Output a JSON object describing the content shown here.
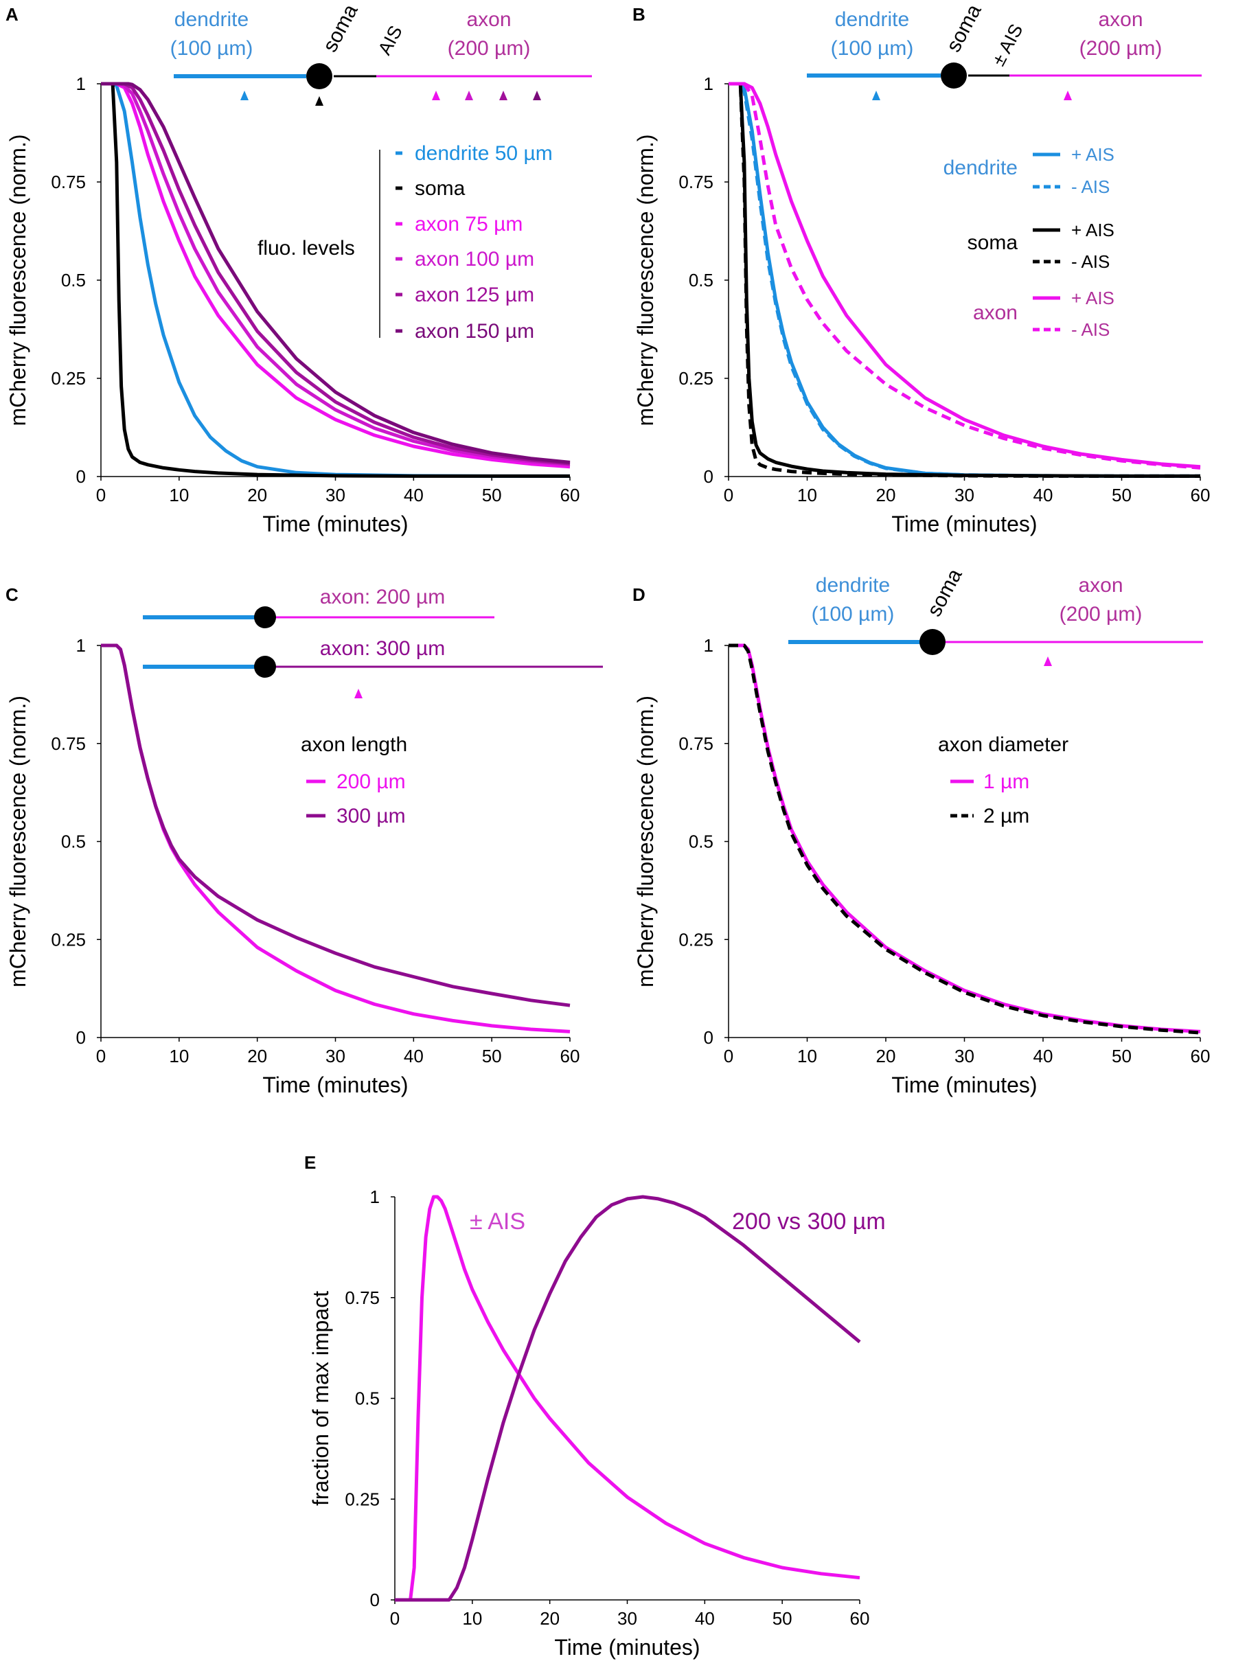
{
  "colors": {
    "dendrite": "#1b8fe0",
    "soma": "#000000",
    "axon_magenta": "#ee11ee",
    "axon_100": "#cc18cc",
    "axon_125": "#a0109a",
    "axon_150": "#7a0a7a",
    "axon_300": "#8e0b8e",
    "axon_label": "#b0309a",
    "dendrite_label": "#3d8fd8"
  },
  "chart_data": [
    {
      "panel": "A",
      "type": "line",
      "xlabel": "Time (minutes)",
      "ylabel": "mCherry fluorescence (norm.)",
      "xlim": [
        0,
        60
      ],
      "ylim": [
        0,
        1
      ],
      "xticks": [
        "0",
        "10",
        "20",
        "30",
        "40",
        "50",
        "60"
      ],
      "yticks": [
        "0",
        "0.25",
        "0.5",
        "0.75",
        "1"
      ],
      "schematic": {
        "dendrite_label": "dendrite",
        "dendrite_len": "(100 µm)",
        "soma_label": "soma",
        "ais_label": "AIS",
        "axon_label": "axon",
        "axon_len": "(200 µm)"
      },
      "legend_title": "fluo. levels",
      "series": [
        {
          "name": "dendrite 50 µm",
          "color": "#1b8fe0",
          "dash": false,
          "x": [
            0,
            1.5,
            2,
            3,
            4,
            5,
            6,
            7,
            8,
            10,
            12,
            14,
            16,
            18,
            20,
            25,
            30,
            40,
            50,
            60
          ],
          "y": [
            1,
            1,
            0.995,
            0.93,
            0.8,
            0.66,
            0.54,
            0.44,
            0.36,
            0.24,
            0.155,
            0.1,
            0.065,
            0.04,
            0.025,
            0.01,
            0.005,
            0.002,
            0.001,
            0.001
          ]
        },
        {
          "name": "soma",
          "color": "#000000",
          "dash": false,
          "x": [
            0,
            1.5,
            2,
            2.3,
            2.6,
            3,
            3.5,
            4,
            5,
            6,
            8,
            10,
            12,
            15,
            20,
            30,
            40,
            50,
            60
          ],
          "y": [
            1,
            1,
            0.8,
            0.45,
            0.23,
            0.12,
            0.07,
            0.05,
            0.036,
            0.03,
            0.022,
            0.017,
            0.013,
            0.009,
            0.005,
            0.002,
            0.001,
            0.001,
            0.001
          ]
        },
        {
          "name": "axon 75 µm",
          "color": "#ee11ee",
          "dash": false,
          "x": [
            0,
            2,
            3,
            4,
            5,
            6,
            8,
            10,
            12,
            15,
            20,
            25,
            30,
            35,
            40,
            45,
            50,
            55,
            60
          ],
          "y": [
            1,
            1,
            0.99,
            0.95,
            0.89,
            0.82,
            0.7,
            0.6,
            0.51,
            0.41,
            0.285,
            0.2,
            0.145,
            0.105,
            0.077,
            0.057,
            0.043,
            0.032,
            0.025
          ]
        },
        {
          "name": "axon 100 µm",
          "color": "#cc18cc",
          "dash": false,
          "x": [
            0,
            2.5,
            3,
            4,
            5,
            6,
            8,
            10,
            12,
            15,
            20,
            25,
            30,
            35,
            40,
            45,
            50,
            55,
            60
          ],
          "y": [
            1,
            1,
            0.995,
            0.975,
            0.93,
            0.88,
            0.77,
            0.67,
            0.58,
            0.47,
            0.33,
            0.235,
            0.17,
            0.123,
            0.09,
            0.066,
            0.05,
            0.038,
            0.03
          ]
        },
        {
          "name": "axon 125 µm",
          "color": "#a0109a",
          "dash": false,
          "x": [
            0,
            3,
            4,
            5,
            6,
            8,
            10,
            12,
            15,
            20,
            25,
            30,
            35,
            40,
            45,
            50,
            55,
            60
          ],
          "y": [
            1,
            1,
            0.99,
            0.96,
            0.92,
            0.83,
            0.73,
            0.64,
            0.52,
            0.37,
            0.265,
            0.19,
            0.138,
            0.1,
            0.073,
            0.055,
            0.042,
            0.033
          ]
        },
        {
          "name": "axon 150 µm",
          "color": "#7a0a7a",
          "dash": false,
          "x": [
            0,
            3.5,
            4,
            5,
            6,
            8,
            10,
            12,
            15,
            20,
            25,
            30,
            35,
            40,
            45,
            50,
            55,
            60
          ],
          "y": [
            1,
            1,
            0.998,
            0.985,
            0.96,
            0.89,
            0.8,
            0.71,
            0.58,
            0.42,
            0.3,
            0.215,
            0.155,
            0.112,
            0.082,
            0.06,
            0.046,
            0.036
          ]
        }
      ]
    },
    {
      "panel": "B",
      "type": "line",
      "xlabel": "Time (minutes)",
      "ylabel": "mCherry fluorescence (norm.)",
      "xlim": [
        0,
        60
      ],
      "ylim": [
        0,
        1
      ],
      "xticks": [
        "0",
        "10",
        "20",
        "30",
        "40",
        "50",
        "60"
      ],
      "yticks": [
        "0",
        "0.25",
        "0.5",
        "0.75",
        "1"
      ],
      "schematic": {
        "dendrite_label": "dendrite",
        "dendrite_len": "(100 µm)",
        "soma_label": "soma",
        "ais_label": "± AIS",
        "axon_label": "axon",
        "axon_len": "(200 µm)"
      },
      "legend": [
        {
          "group": "dendrite",
          "plus": "+ AIS",
          "minus": "- AIS",
          "color": "#1b8fe0"
        },
        {
          "group": "soma",
          "plus": "+ AIS",
          "minus": "- AIS",
          "color": "#000000"
        },
        {
          "group": "axon",
          "plus": "+ AIS",
          "minus": "- AIS",
          "color": "#ee11ee"
        }
      ],
      "series": [
        {
          "name": "dendrite + AIS",
          "color": "#1b8fe0",
          "dash": false,
          "x": [
            0,
            1.5,
            2,
            3,
            4,
            5,
            6,
            7,
            8,
            10,
            12,
            14,
            16,
            18,
            20,
            25,
            30,
            40,
            50,
            60
          ],
          "y": [
            1,
            1,
            0.99,
            0.88,
            0.72,
            0.57,
            0.45,
            0.36,
            0.29,
            0.19,
            0.125,
            0.082,
            0.054,
            0.035,
            0.022,
            0.008,
            0.004,
            0.002,
            0.001,
            0.001
          ]
        },
        {
          "name": "dendrite - AIS",
          "color": "#1b8fe0",
          "dash": true,
          "x": [
            0,
            1.5,
            2,
            3,
            4,
            5,
            6,
            7,
            8,
            10,
            12,
            14,
            16,
            18,
            20,
            25,
            30,
            40,
            50,
            60
          ],
          "y": [
            1,
            1,
            0.98,
            0.86,
            0.7,
            0.55,
            0.44,
            0.35,
            0.28,
            0.185,
            0.12,
            0.08,
            0.052,
            0.034,
            0.021,
            0.008,
            0.004,
            0.002,
            0.001,
            0.001
          ]
        },
        {
          "name": "soma + AIS",
          "color": "#000000",
          "dash": false,
          "x": [
            0,
            1.5,
            2,
            2.3,
            2.6,
            3,
            3.5,
            4,
            5,
            6,
            8,
            10,
            12,
            15,
            20,
            30,
            40,
            50,
            60
          ],
          "y": [
            1,
            1,
            0.8,
            0.45,
            0.25,
            0.14,
            0.08,
            0.06,
            0.045,
            0.036,
            0.026,
            0.019,
            0.014,
            0.01,
            0.006,
            0.003,
            0.002,
            0.001,
            0.001
          ]
        },
        {
          "name": "soma - AIS",
          "color": "#000000",
          "dash": true,
          "x": [
            0,
            1.5,
            2,
            2.3,
            2.6,
            3,
            3.5,
            4,
            5,
            6,
            8,
            10,
            12,
            15,
            20,
            30,
            40,
            50,
            60
          ],
          "y": [
            1,
            1,
            0.75,
            0.38,
            0.18,
            0.08,
            0.04,
            0.03,
            0.022,
            0.018,
            0.013,
            0.01,
            0.008,
            0.006,
            0.004,
            0.002,
            0.001,
            0.001,
            0.001
          ]
        },
        {
          "name": "axon + AIS",
          "color": "#ee11ee",
          "dash": false,
          "x": [
            0,
            2,
            3,
            4,
            5,
            6,
            8,
            10,
            12,
            15,
            20,
            25,
            30,
            35,
            40,
            45,
            50,
            55,
            60
          ],
          "y": [
            1,
            1,
            0.99,
            0.95,
            0.89,
            0.82,
            0.7,
            0.6,
            0.51,
            0.41,
            0.285,
            0.2,
            0.145,
            0.105,
            0.077,
            0.057,
            0.043,
            0.032,
            0.025
          ]
        },
        {
          "name": "axon - AIS",
          "color": "#ee11ee",
          "dash": true,
          "x": [
            0,
            2,
            3,
            4,
            5,
            6,
            8,
            10,
            12,
            15,
            20,
            25,
            30,
            35,
            40,
            45,
            50,
            55,
            60
          ],
          "y": [
            1,
            1,
            0.97,
            0.86,
            0.74,
            0.64,
            0.53,
            0.45,
            0.39,
            0.32,
            0.235,
            0.175,
            0.13,
            0.097,
            0.072,
            0.054,
            0.04,
            0.03,
            0.022
          ]
        }
      ]
    },
    {
      "panel": "C",
      "type": "line",
      "xlabel": "Time (minutes)",
      "ylabel": "mCherry fluorescence (norm.)",
      "xlim": [
        0,
        60
      ],
      "ylim": [
        0,
        1
      ],
      "xticks": [
        "0",
        "10",
        "20",
        "30",
        "40",
        "50",
        "60"
      ],
      "yticks": [
        "0",
        "0.25",
        "0.5",
        "0.75",
        "1"
      ],
      "schematic": {
        "axon_200_label": "axon: 200 µm",
        "axon_300_label": "axon: 300 µm"
      },
      "legend_title": "axon length",
      "series": [
        {
          "name": "200 µm",
          "color": "#ee11ee",
          "dash": false,
          "x": [
            0,
            2,
            2.5,
            3,
            4,
            5,
            6,
            7,
            8,
            9,
            10,
            12,
            15,
            20,
            25,
            30,
            35,
            40,
            45,
            50,
            55,
            60
          ],
          "y": [
            1,
            1,
            0.99,
            0.95,
            0.84,
            0.74,
            0.66,
            0.59,
            0.53,
            0.485,
            0.45,
            0.39,
            0.32,
            0.23,
            0.17,
            0.12,
            0.085,
            0.06,
            0.043,
            0.03,
            0.021,
            0.015
          ]
        },
        {
          "name": "300 µm",
          "color": "#8e0b8e",
          "dash": false,
          "x": [
            0,
            2,
            2.5,
            3,
            4,
            5,
            6,
            7,
            8,
            9,
            10,
            12,
            15,
            20,
            25,
            30,
            35,
            40,
            45,
            50,
            55,
            60
          ],
          "y": [
            1,
            1,
            0.99,
            0.95,
            0.84,
            0.74,
            0.66,
            0.59,
            0.535,
            0.49,
            0.455,
            0.41,
            0.36,
            0.3,
            0.255,
            0.215,
            0.18,
            0.155,
            0.13,
            0.112,
            0.095,
            0.082
          ]
        }
      ]
    },
    {
      "panel": "D",
      "type": "line",
      "xlabel": "Time (minutes)",
      "ylabel": "mCherry fluorescence (norm.)",
      "xlim": [
        0,
        60
      ],
      "ylim": [
        0,
        1
      ],
      "xticks": [
        "0",
        "10",
        "20",
        "30",
        "40",
        "50",
        "60"
      ],
      "yticks": [
        "0",
        "0.25",
        "0.5",
        "0.75",
        "1"
      ],
      "schematic": {
        "dendrite_label": "dendrite",
        "dendrite_len": "(100 µm)",
        "soma_label": "soma",
        "axon_label": "axon",
        "axon_len": "(200 µm)"
      },
      "legend_title": "axon diameter",
      "series": [
        {
          "name": "1 µm",
          "color": "#ee11ee",
          "dash": false,
          "x": [
            0,
            2,
            2.5,
            3,
            4,
            5,
            6,
            7,
            8,
            10,
            12,
            15,
            20,
            25,
            30,
            35,
            40,
            45,
            50,
            55,
            60
          ],
          "y": [
            1,
            1,
            0.99,
            0.95,
            0.84,
            0.74,
            0.66,
            0.59,
            0.53,
            0.45,
            0.39,
            0.32,
            0.23,
            0.17,
            0.12,
            0.085,
            0.06,
            0.043,
            0.03,
            0.021,
            0.015
          ]
        },
        {
          "name": "2 µm",
          "color": "#000000",
          "dash": true,
          "x": [
            0,
            2,
            2.5,
            3,
            4,
            5,
            6,
            7,
            8,
            10,
            12,
            15,
            20,
            25,
            30,
            35,
            40,
            45,
            50,
            55,
            60
          ],
          "y": [
            1,
            1,
            0.985,
            0.94,
            0.83,
            0.73,
            0.65,
            0.58,
            0.52,
            0.44,
            0.38,
            0.31,
            0.225,
            0.165,
            0.115,
            0.08,
            0.056,
            0.04,
            0.028,
            0.019,
            0.012
          ]
        }
      ]
    },
    {
      "panel": "E",
      "type": "line",
      "xlabel": "Time (minutes)",
      "ylabel": "fraction of max impact",
      "xlim": [
        0,
        60
      ],
      "ylim": [
        0,
        1
      ],
      "xticks": [
        "0",
        "10",
        "20",
        "30",
        "40",
        "50",
        "60"
      ],
      "yticks": [
        "0",
        "0.25",
        "0.5",
        "0.75",
        "1"
      ],
      "series": [
        {
          "name": "± AIS",
          "color": "#ee11ee",
          "dash": false,
          "x": [
            0,
            2,
            2.5,
            3,
            3.5,
            4,
            4.5,
            5,
            5.5,
            6,
            6.5,
            7,
            8,
            9,
            10,
            12,
            14,
            16,
            18,
            20,
            25,
            30,
            35,
            40,
            45,
            50,
            55,
            60
          ],
          "y": [
            0,
            0,
            0.08,
            0.45,
            0.75,
            0.9,
            0.97,
            1.0,
            1.0,
            0.99,
            0.97,
            0.94,
            0.88,
            0.82,
            0.77,
            0.69,
            0.62,
            0.56,
            0.5,
            0.45,
            0.34,
            0.255,
            0.19,
            0.14,
            0.105,
            0.08,
            0.065,
            0.055
          ]
        },
        {
          "name": "200 vs 300 µm",
          "color": "#8e0b8e",
          "dash": false,
          "x": [
            0,
            7,
            8,
            9,
            10,
            12,
            14,
            16,
            18,
            20,
            22,
            24,
            26,
            28,
            30,
            32,
            34,
            36,
            38,
            40,
            45,
            50,
            55,
            60
          ],
          "y": [
            0,
            0,
            0.03,
            0.08,
            0.15,
            0.3,
            0.44,
            0.56,
            0.67,
            0.76,
            0.84,
            0.9,
            0.95,
            0.98,
            0.995,
            1.0,
            0.995,
            0.985,
            0.97,
            0.95,
            0.88,
            0.8,
            0.72,
            0.64
          ]
        }
      ]
    }
  ]
}
